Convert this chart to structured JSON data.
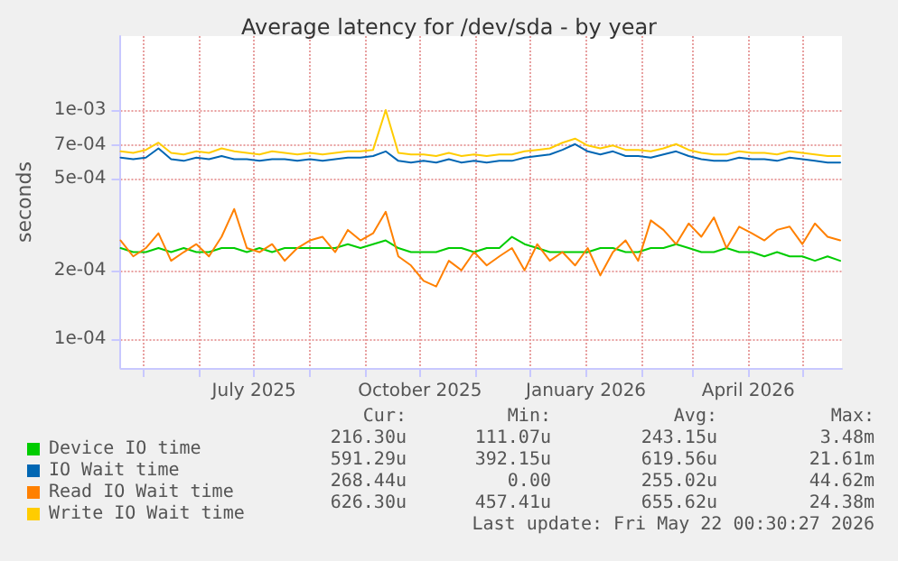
{
  "chart_data": {
    "type": "line",
    "title": "Average latency for /dev/sda - by year",
    "ylabel": "seconds",
    "x": [
      "2025-04-18",
      "2025-04-25",
      "2025-05-02",
      "2025-05-09",
      "2025-05-16",
      "2025-05-23",
      "2025-05-30",
      "2025-06-06",
      "2025-06-13",
      "2025-06-20",
      "2025-06-27",
      "2025-07-04",
      "2025-07-11",
      "2025-07-18",
      "2025-07-25",
      "2025-08-01",
      "2025-08-08",
      "2025-08-15",
      "2025-08-22",
      "2025-08-29",
      "2025-09-05",
      "2025-09-12",
      "2025-09-19",
      "2025-09-26",
      "2025-10-03",
      "2025-10-10",
      "2025-10-17",
      "2025-10-24",
      "2025-10-31",
      "2025-11-07",
      "2025-11-14",
      "2025-11-21",
      "2025-11-28",
      "2025-12-05",
      "2025-12-12",
      "2025-12-19",
      "2025-12-26",
      "2026-01-02",
      "2026-01-09",
      "2026-01-16",
      "2026-01-23",
      "2026-01-30",
      "2026-02-06",
      "2026-02-13",
      "2026-02-20",
      "2026-02-27",
      "2026-03-06",
      "2026-03-13",
      "2026-03-20",
      "2026-03-27",
      "2026-04-03",
      "2026-04-10",
      "2026-04-17",
      "2026-04-24",
      "2026-05-01",
      "2026-05-08",
      "2026-05-15",
      "2026-05-22"
    ],
    "series": [
      {
        "name": "Device IO time",
        "color": "#00cc00",
        "values": [
          0.00025,
          0.00024,
          0.00024,
          0.00025,
          0.00024,
          0.00025,
          0.00024,
          0.00024,
          0.00025,
          0.00025,
          0.00024,
          0.00025,
          0.00024,
          0.00025,
          0.00025,
          0.00025,
          0.00025,
          0.00025,
          0.00026,
          0.00025,
          0.00026,
          0.00027,
          0.00025,
          0.00024,
          0.00024,
          0.00024,
          0.00025,
          0.00025,
          0.00024,
          0.00025,
          0.00025,
          0.00028,
          0.00026,
          0.00025,
          0.00024,
          0.00024,
          0.00024,
          0.00024,
          0.00025,
          0.00025,
          0.00024,
          0.00024,
          0.00025,
          0.00025,
          0.00026,
          0.00025,
          0.00024,
          0.00024,
          0.00025,
          0.00024,
          0.00024,
          0.00023,
          0.00024,
          0.00023,
          0.00023,
          0.00022,
          0.00023,
          0.00022
        ]
      },
      {
        "name": "IO Wait time",
        "color": "#0066b3",
        "values": [
          0.00062,
          0.00061,
          0.00062,
          0.00068,
          0.00061,
          0.0006,
          0.00062,
          0.00061,
          0.00063,
          0.00061,
          0.00061,
          0.0006,
          0.00061,
          0.00061,
          0.0006,
          0.00061,
          0.0006,
          0.00061,
          0.00062,
          0.00062,
          0.00063,
          0.00066,
          0.0006,
          0.00059,
          0.0006,
          0.00059,
          0.00061,
          0.00059,
          0.0006,
          0.00059,
          0.0006,
          0.0006,
          0.00062,
          0.00063,
          0.00064,
          0.00067,
          0.00071,
          0.00066,
          0.00064,
          0.00066,
          0.00063,
          0.00063,
          0.00062,
          0.00064,
          0.00066,
          0.00063,
          0.00061,
          0.0006,
          0.0006,
          0.00062,
          0.00061,
          0.00061,
          0.0006,
          0.00062,
          0.00061,
          0.0006,
          0.00059,
          0.00059
        ]
      },
      {
        "name": "Read IO Wait time",
        "color": "#ff8000",
        "values": [
          0.00027,
          0.00023,
          0.00025,
          0.00029,
          0.00022,
          0.00024,
          0.00026,
          0.00023,
          0.00028,
          0.00037,
          0.00025,
          0.00024,
          0.00026,
          0.00022,
          0.00025,
          0.00027,
          0.00028,
          0.00024,
          0.0003,
          0.00027,
          0.00029,
          0.00036,
          0.00023,
          0.00021,
          0.00018,
          0.00017,
          0.00022,
          0.0002,
          0.00024,
          0.00021,
          0.00023,
          0.00025,
          0.0002,
          0.00026,
          0.00022,
          0.00024,
          0.00021,
          0.00025,
          0.00019,
          0.00024,
          0.00027,
          0.00022,
          0.00033,
          0.0003,
          0.00026,
          0.00032,
          0.00028,
          0.00034,
          0.00025,
          0.00031,
          0.00029,
          0.00027,
          0.0003,
          0.00031,
          0.00026,
          0.00032,
          0.00028,
          0.00027
        ]
      },
      {
        "name": "Write IO Wait time",
        "color": "#ffcc00",
        "values": [
          0.00066,
          0.00065,
          0.00067,
          0.00072,
          0.00065,
          0.00064,
          0.00066,
          0.00065,
          0.00068,
          0.00066,
          0.00065,
          0.00064,
          0.00066,
          0.00065,
          0.00064,
          0.00065,
          0.00064,
          0.00065,
          0.00066,
          0.00066,
          0.00067,
          0.001,
          0.00065,
          0.00064,
          0.00064,
          0.00063,
          0.00065,
          0.00063,
          0.00064,
          0.00063,
          0.00064,
          0.00064,
          0.00066,
          0.00067,
          0.00068,
          0.00072,
          0.00075,
          0.0007,
          0.00068,
          0.0007,
          0.00067,
          0.00067,
          0.00066,
          0.00068,
          0.00071,
          0.00067,
          0.00065,
          0.00064,
          0.00064,
          0.00066,
          0.00065,
          0.00065,
          0.00064,
          0.00066,
          0.00065,
          0.00064,
          0.00063,
          0.00063
        ]
      }
    ],
    "xlim": [
      "2025-04-18",
      "2026-05-23"
    ],
    "xticks": [
      {
        "value": "2025-05-01",
        "label": null
      },
      {
        "value": "2025-06-01",
        "label": null
      },
      {
        "value": "2025-07-01",
        "label": "July 2025"
      },
      {
        "value": "2025-08-01",
        "label": null
      },
      {
        "value": "2025-09-01",
        "label": null
      },
      {
        "value": "2025-10-01",
        "label": "October 2025"
      },
      {
        "value": "2025-11-01",
        "label": null
      },
      {
        "value": "2025-12-01",
        "label": null
      },
      {
        "value": "2026-01-01",
        "label": "January 2026"
      },
      {
        "value": "2026-02-01",
        "label": null
      },
      {
        "value": "2026-03-01",
        "label": null
      },
      {
        "value": "2026-04-01",
        "label": "April 2026"
      },
      {
        "value": "2026-05-01",
        "label": null
      }
    ],
    "ylim": [
      7.5e-05,
      0.0021
    ],
    "yticks": [
      {
        "value": 0.0001,
        "label": "1e-04"
      },
      {
        "value": 0.0002,
        "label": "2e-04"
      },
      {
        "value": 0.0005,
        "label": "5e-04"
      },
      {
        "value": 0.0007,
        "label": "7e-04"
      },
      {
        "value": 0.001,
        "label": "1e-03"
      }
    ],
    "log": "y",
    "grid": true,
    "legend": "bottom",
    "marker": "none",
    "line_style": "solid",
    "annotations": [
      "Cur:",
      "Min:",
      "Avg:",
      "Max:",
      "216.30u",
      "111.07u",
      "243.15u",
      "3.48m",
      "591.29u",
      "392.15u",
      "619.56u",
      "21.61m",
      "268.44u",
      "0.00",
      "255.02u",
      "44.62m",
      "626.30u",
      "457.41u",
      "655.62u",
      "24.38m",
      "Last update: Fri May 22 00:30:27 2026"
    ]
  }
}
